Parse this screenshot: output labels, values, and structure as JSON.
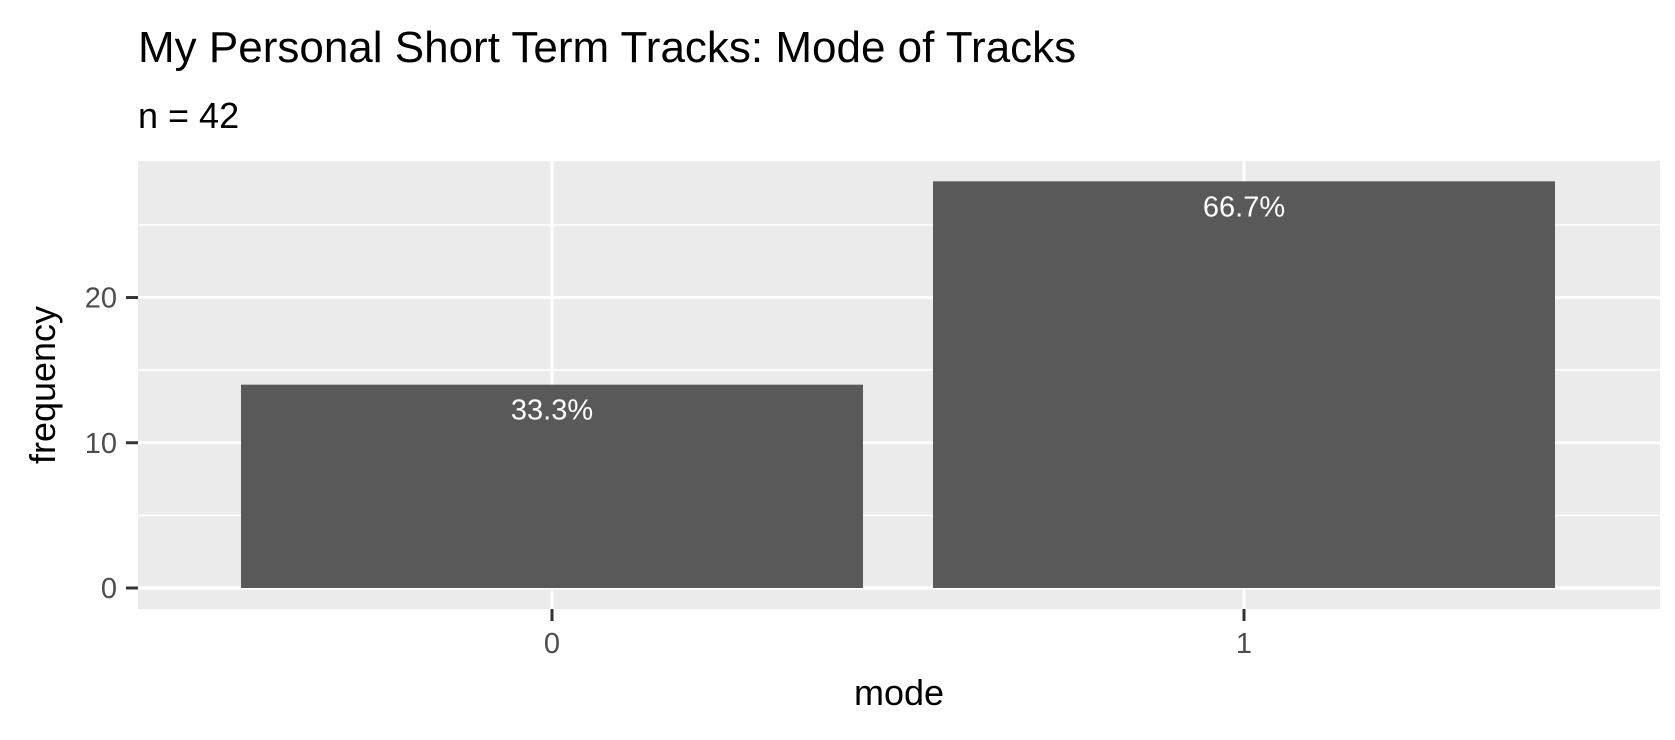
{
  "chart_data": {
    "type": "bar",
    "title": "My Personal Short Term Tracks: Mode of Tracks",
    "subtitle": "n = 42",
    "xlabel": "mode",
    "ylabel": "frequency",
    "categories": [
      "0",
      "1"
    ],
    "values": [
      14,
      28
    ],
    "data_labels": [
      "33.3%",
      "66.7%"
    ],
    "ylim": [
      0,
      29.4
    ],
    "y_ticks": [
      0,
      10,
      20
    ],
    "grid": true,
    "legend": "none",
    "colors": {
      "bar": "#595959",
      "panel": "#ebebeb",
      "grid": "#ffffff",
      "tick_text": "#4d4d4d",
      "data_label_text": "#ffffff"
    }
  }
}
